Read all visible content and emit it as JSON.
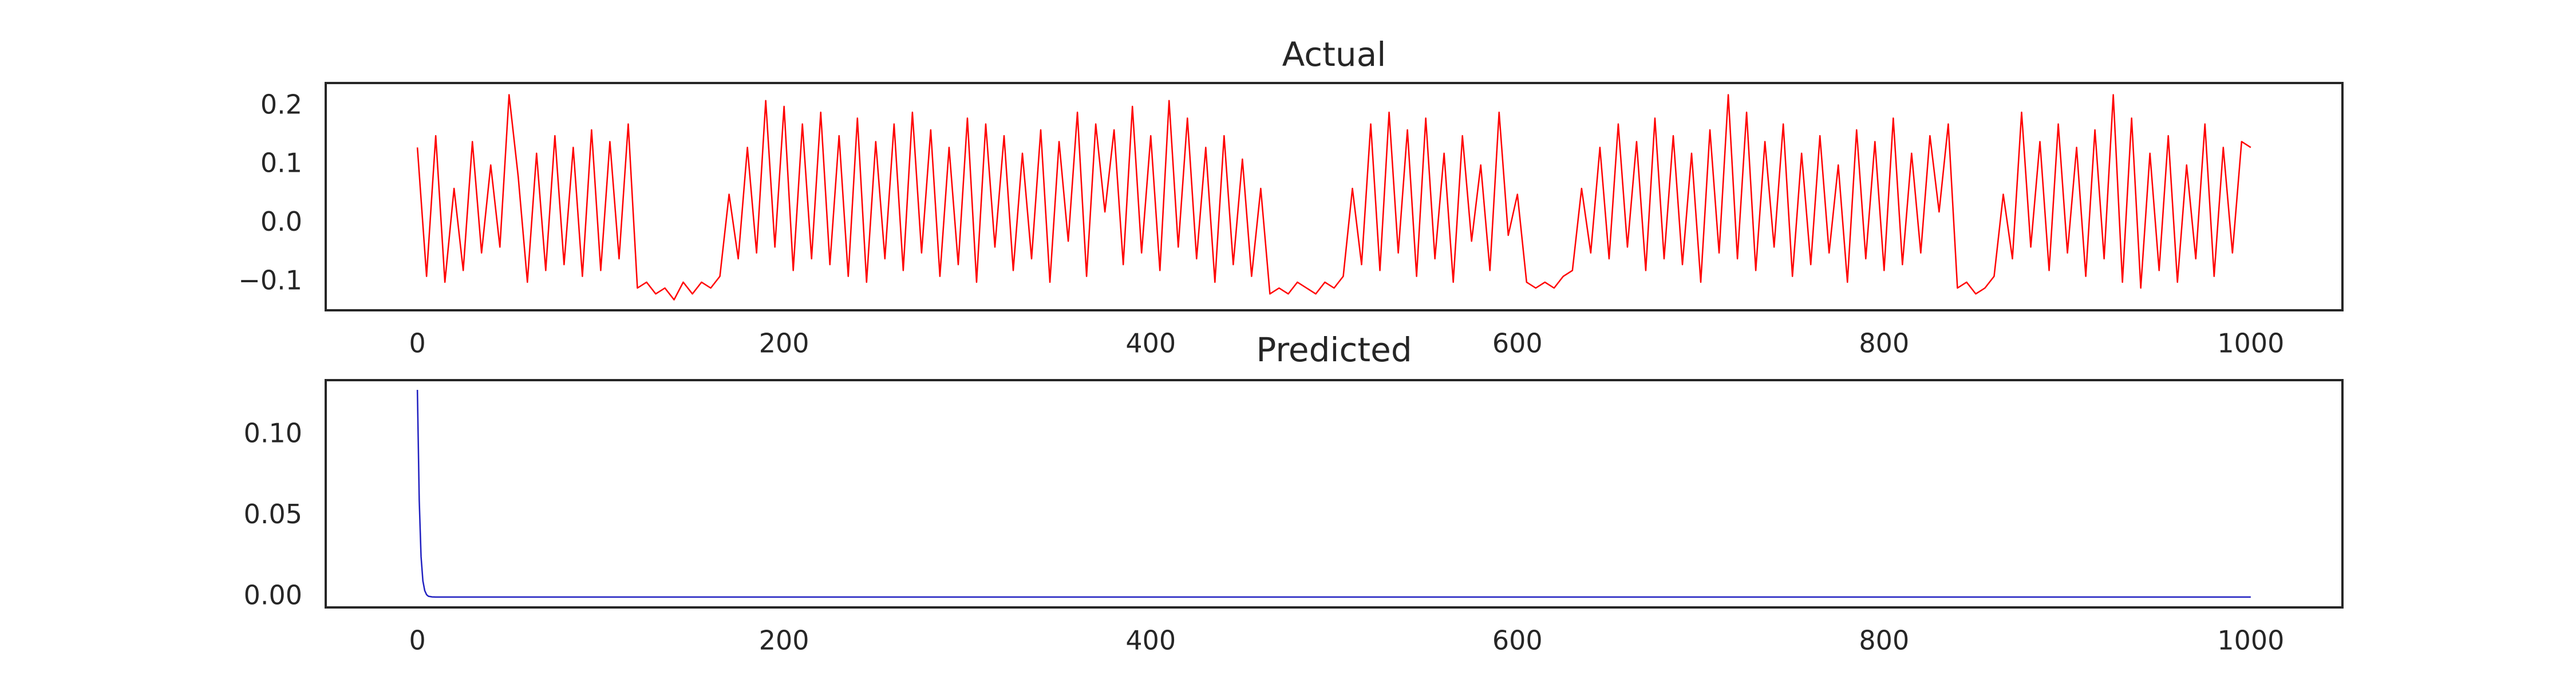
{
  "chart_data": [
    {
      "type": "line",
      "title": "Actual",
      "x": [
        0,
        5,
        10,
        15,
        20,
        25,
        30,
        35,
        40,
        45,
        50,
        55,
        60,
        65,
        70,
        75,
        80,
        85,
        90,
        95,
        100,
        105,
        110,
        115,
        120,
        125,
        130,
        135,
        140,
        145,
        150,
        155,
        160,
        165,
        170,
        175,
        180,
        185,
        190,
        195,
        200,
        205,
        210,
        215,
        220,
        225,
        230,
        235,
        240,
        245,
        250,
        255,
        260,
        265,
        270,
        275,
        280,
        285,
        290,
        295,
        300,
        305,
        310,
        315,
        320,
        325,
        330,
        335,
        340,
        345,
        350,
        355,
        360,
        365,
        370,
        375,
        380,
        385,
        390,
        395,
        400,
        405,
        410,
        415,
        420,
        425,
        430,
        435,
        440,
        445,
        450,
        455,
        460,
        465,
        470,
        475,
        480,
        485,
        490,
        495,
        500,
        505,
        510,
        515,
        520,
        525,
        530,
        535,
        540,
        545,
        550,
        555,
        560,
        565,
        570,
        575,
        580,
        585,
        590,
        595,
        600,
        605,
        610,
        615,
        620,
        625,
        630,
        635,
        640,
        645,
        650,
        655,
        660,
        665,
        670,
        675,
        680,
        685,
        690,
        695,
        700,
        705,
        710,
        715,
        720,
        725,
        730,
        735,
        740,
        745,
        750,
        755,
        760,
        765,
        770,
        775,
        780,
        785,
        790,
        795,
        800,
        805,
        810,
        815,
        820,
        825,
        830,
        835,
        840,
        845,
        850,
        855,
        860,
        865,
        870,
        875,
        880,
        885,
        890,
        895,
        900,
        905,
        910,
        915,
        920,
        925,
        930,
        935,
        940,
        945,
        950,
        955,
        960,
        965,
        970,
        975,
        980,
        985,
        990,
        995,
        1000
      ],
      "series": [
        {
          "color": "#ff0000",
          "values": [
            0.13,
            -0.09,
            0.15,
            -0.1,
            0.06,
            -0.08,
            0.14,
            -0.05,
            0.1,
            -0.04,
            0.22,
            0.08,
            -0.1,
            0.12,
            -0.08,
            0.15,
            -0.07,
            0.13,
            -0.09,
            0.16,
            -0.08,
            0.14,
            -0.06,
            0.17,
            -0.11,
            -0.1,
            -0.12,
            -0.11,
            -0.13,
            -0.1,
            -0.12,
            -0.1,
            -0.11,
            -0.09,
            0.05,
            -0.06,
            0.13,
            -0.05,
            0.21,
            -0.04,
            0.2,
            -0.08,
            0.17,
            -0.06,
            0.19,
            -0.07,
            0.15,
            -0.09,
            0.18,
            -0.1,
            0.14,
            -0.06,
            0.17,
            -0.08,
            0.19,
            -0.05,
            0.16,
            -0.09,
            0.13,
            -0.07,
            0.18,
            -0.1,
            0.17,
            -0.04,
            0.15,
            -0.08,
            0.12,
            -0.06,
            0.16,
            -0.1,
            0.14,
            -0.03,
            0.19,
            -0.09,
            0.17,
            0.02,
            0.16,
            -0.07,
            0.2,
            -0.05,
            0.15,
            -0.08,
            0.21,
            -0.04,
            0.18,
            -0.06,
            0.13,
            -0.1,
            0.15,
            -0.07,
            0.11,
            -0.09,
            0.06,
            -0.12,
            -0.11,
            -0.12,
            -0.1,
            -0.11,
            -0.12,
            -0.1,
            -0.11,
            -0.09,
            0.06,
            -0.07,
            0.17,
            -0.08,
            0.19,
            -0.05,
            0.16,
            -0.09,
            0.18,
            -0.06,
            0.12,
            -0.1,
            0.15,
            -0.03,
            0.1,
            -0.08,
            0.19,
            -0.02,
            0.05,
            -0.1,
            -0.11,
            -0.1,
            -0.11,
            -0.09,
            -0.08,
            0.06,
            -0.05,
            0.13,
            -0.06,
            0.17,
            -0.04,
            0.14,
            -0.08,
            0.18,
            -0.06,
            0.15,
            -0.07,
            0.12,
            -0.1,
            0.16,
            -0.05,
            0.22,
            -0.06,
            0.19,
            -0.08,
            0.14,
            -0.04,
            0.17,
            -0.09,
            0.12,
            -0.07,
            0.15,
            -0.05,
            0.1,
            -0.1,
            0.16,
            -0.06,
            0.14,
            -0.08,
            0.18,
            -0.07,
            0.12,
            -0.05,
            0.15,
            0.02,
            0.17,
            -0.11,
            -0.1,
            -0.12,
            -0.11,
            -0.09,
            0.05,
            -0.06,
            0.19,
            -0.04,
            0.14,
            -0.08,
            0.17,
            -0.05,
            0.13,
            -0.09,
            0.16,
            -0.06,
            0.22,
            -0.1,
            0.18,
            -0.11,
            0.12,
            -0.08,
            0.15,
            -0.1,
            0.1,
            -0.06,
            0.17,
            -0.09,
            0.13,
            -0.05,
            0.14,
            0.13
          ]
        }
      ],
      "xlim": [
        -50,
        1050
      ],
      "xticks": [
        0,
        200,
        400,
        600,
        800,
        1000
      ],
      "ylim": [
        -0.148,
        0.24
      ],
      "yticks": [
        {
          "value": -0.1,
          "label": "−0.1"
        },
        {
          "value": 0,
          "label": "0.0"
        },
        0.1,
        0.2
      ],
      "grid": false
    },
    {
      "type": "line",
      "title": "Predicted",
      "x": [
        0,
        1,
        2,
        3,
        4,
        5,
        6,
        8,
        10,
        1000
      ],
      "series": [
        {
          "color": "#2020c0",
          "values": [
            0.128,
            0.06,
            0.025,
            0.01,
            0.004,
            0.0015,
            0.0005,
            0.0001,
            0,
            0
          ]
        }
      ],
      "xlim": [
        -50,
        1050
      ],
      "xticks": [
        0,
        200,
        400,
        600,
        800,
        1000
      ],
      "ylim": [
        -0.0064,
        0.134
      ],
      "yticks": [
        {
          "value": 0,
          "label": "0.00"
        },
        {
          "value": 0.05,
          "label": "0.05"
        },
        {
          "value": 0.1,
          "label": "0.10"
        }
      ],
      "grid": false
    }
  ]
}
